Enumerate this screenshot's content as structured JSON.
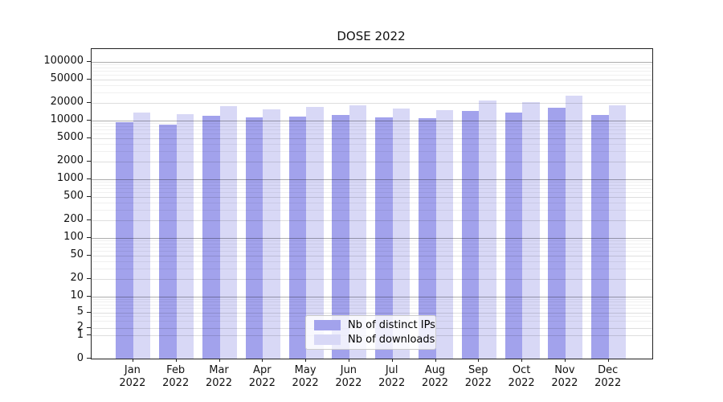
{
  "chart_data": {
    "type": "bar",
    "title": "DOSE 2022",
    "xlabel": "",
    "ylabel": "",
    "y_scale": "symlog",
    "ylim": [
      0,
      155000
    ],
    "grid": true,
    "legend_position": "lower center",
    "year": "2022",
    "categories": [
      "Jan",
      "Feb",
      "Mar",
      "Apr",
      "May",
      "Jun",
      "Jul",
      "Aug",
      "Sep",
      "Oct",
      "Nov",
      "Dec"
    ],
    "y_ticks": [
      0,
      1,
      2,
      5,
      10,
      20,
      50,
      100,
      200,
      500,
      1000,
      2000,
      5000,
      10000,
      20000,
      50000,
      100000
    ],
    "series": [
      {
        "name": "Nb of distinct IPs",
        "color": "#a2a2ec",
        "values": [
          9400,
          8500,
          12000,
          11200,
          11500,
          12500,
          11200,
          10900,
          14300,
          13700,
          16300,
          12500
        ]
      },
      {
        "name": "Nb of downloads",
        "color": "#d8d8f6",
        "values": [
          13700,
          12900,
          17700,
          15600,
          17100,
          18200,
          15900,
          15100,
          21600,
          20500,
          26000,
          17900
        ]
      }
    ]
  }
}
